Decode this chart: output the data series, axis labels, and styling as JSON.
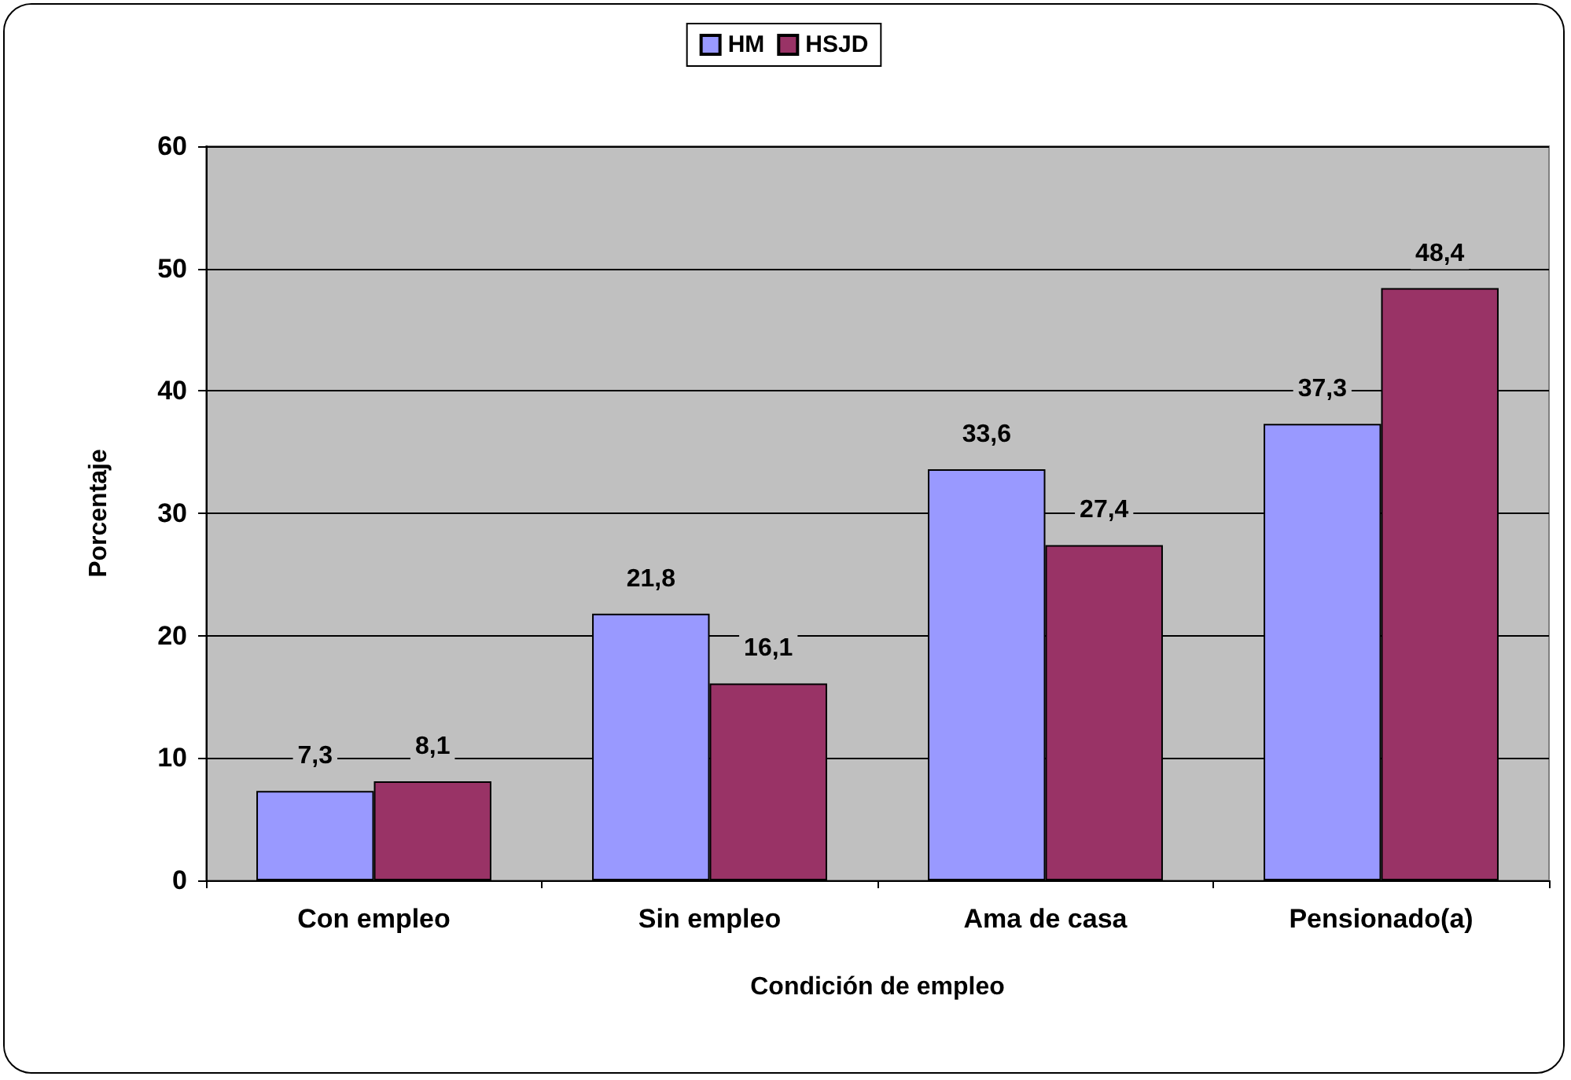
{
  "chart_data": {
    "type": "bar",
    "xlabel": "Condición de empleo",
    "ylabel": "Porcentaje",
    "categories": [
      "Con empleo",
      "Sin empleo",
      "Ama de casa",
      "Pensionado(a)"
    ],
    "series": [
      {
        "name": "HM",
        "color": "#9999ff",
        "values": [
          7.3,
          21.8,
          33.6,
          37.3
        ],
        "value_labels": [
          "7,3",
          "21,8",
          "33,6",
          "37,3"
        ]
      },
      {
        "name": "HSJD",
        "color": "#993366",
        "values": [
          8.1,
          16.1,
          27.4,
          48.4
        ],
        "value_labels": [
          "8,1",
          "16,1",
          "27,4",
          "48,4"
        ]
      }
    ],
    "ylim": [
      0,
      60
    ],
    "yticks": [
      0,
      10,
      20,
      30,
      40,
      50,
      60
    ],
    "grid": "y",
    "legend": "top"
  }
}
